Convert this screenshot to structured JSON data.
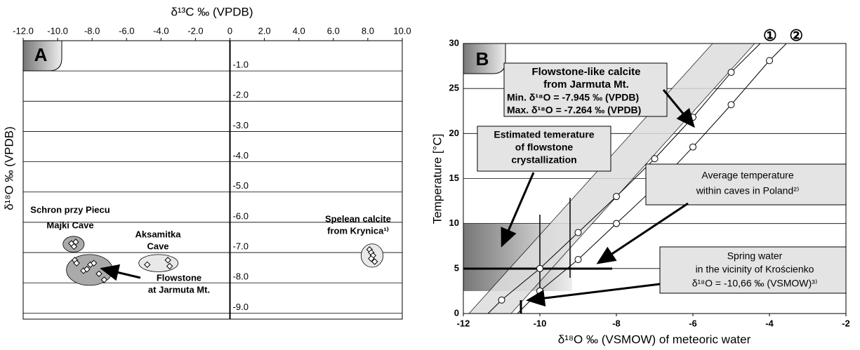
{
  "chart_data": [
    {
      "type": "scatter",
      "panel": "A",
      "x_label": "δ¹³C ‰ (VPDB)",
      "y_label": "δ¹⁸O ‰ (VPDB)",
      "xlim": [
        -12,
        10
      ],
      "ylim": [
        0,
        -9.2
      ],
      "xticks": [
        {
          "value": -12,
          "label": "-12.0"
        },
        {
          "value": -10,
          "label": "-10.0"
        },
        {
          "value": -8,
          "label": "-8.0"
        },
        {
          "value": -6,
          "label": "-6.0"
        },
        {
          "value": -4,
          "label": "-4.0"
        },
        {
          "value": -2,
          "label": "-2.0"
        },
        0,
        {
          "value": 2,
          "label": "2.0"
        },
        {
          "value": 4,
          "label": "4.0"
        },
        {
          "value": 6,
          "label": "6.0"
        },
        {
          "value": 8,
          "label": "8.0"
        },
        {
          "value": 10,
          "label": "10.0"
        }
      ],
      "yticks": [
        {
          "value": -1,
          "label": "-1.0"
        },
        {
          "value": -2,
          "label": "-2.0"
        },
        {
          "value": -3,
          "label": "-3.0"
        },
        {
          "value": -4,
          "label": "-4.0"
        },
        {
          "value": -5,
          "label": "-5.0"
        },
        {
          "value": -6,
          "label": "-6.0"
        },
        {
          "value": -7,
          "label": "-7.0"
        },
        {
          "value": -8,
          "label": "-8.0"
        },
        {
          "value": -9,
          "label": "-9.0"
        }
      ],
      "grid": true,
      "series": [
        {
          "color": "#aaaaaa",
          "x": [
            -9.2,
            -8.95,
            -9.05
          ],
          "values": [
            -6.7,
            -6.65,
            -6.8
          ]
        },
        {
          "color": "#aaaaaa",
          "x": [
            -9.0,
            -8.9,
            -8.5,
            -8.3,
            -8.1,
            -7.9,
            -7.6,
            -7.3
          ],
          "values": [
            -7.25,
            -7.35,
            -7.6,
            -7.55,
            -7.4,
            -7.35,
            -7.7,
            -7.9
          ]
        },
        {
          "color": "#e8e8e8",
          "x": [
            -4.8,
            -3.6,
            -3.5
          ],
          "values": [
            -7.4,
            -7.25,
            -7.45
          ]
        },
        {
          "color": "#e8e8e8",
          "x": [
            8.1,
            8.2,
            8.3,
            8.2,
            8.4
          ],
          "values": [
            -6.9,
            -7.0,
            -7.1,
            -7.2,
            -7.3
          ]
        }
      ],
      "annotations": [
        {
          "lines": [
            "Schron przy Piecu",
            "Majki Cave"
          ]
        },
        {
          "lines": [
            "Flowstone",
            "at Jarmuta Mt."
          ]
        },
        {
          "lines": [
            "Aksamitka",
            "Cave"
          ]
        },
        {
          "lines": [
            "Spelean calcite",
            "from Krynica¹⁾"
          ]
        }
      ]
    },
    {
      "type": "line",
      "panel": "B",
      "x_label": "δ¹⁸O ‰ (VSMOW) of meteoric water",
      "y_label": "Temperature [°C]",
      "xlim": [
        -12,
        -2
      ],
      "ylim": [
        0,
        30
      ],
      "xticks": [
        -12,
        -10,
        -8,
        -6,
        -4,
        -2
      ],
      "yticks": [
        0,
        5,
        10,
        15,
        20,
        25,
        30
      ],
      "grid": true,
      "series": [
        {
          "name": "①",
          "color": "#000000",
          "x": [
            -11,
            -10,
            -9,
            -8,
            -7,
            -6,
            -5
          ],
          "values": [
            1.5,
            5,
            9,
            13,
            17.2,
            21.8,
            26.8
          ]
        },
        {
          "name": "②",
          "color": "#000000",
          "x": [
            -10,
            -9,
            -8,
            -7,
            -6,
            -5,
            -4
          ],
          "values": [
            2.5,
            6,
            10,
            14,
            18.5,
            23.2,
            28.1
          ]
        }
      ],
      "annotations": [
        {
          "lines": [
            "Flowstone-like calcite",
            "from Jarmuta Mt.",
            "Min. δ¹⁸O = -7.945 ‰ (VPDB)",
            "Max. δ¹⁸O = -7.264 ‰ (VPDB)"
          ]
        },
        {
          "lines": [
            "Estimated temerature",
            "of flowstone",
            "crystallization"
          ]
        },
        {
          "lines": [
            "Average temperature",
            "within caves in Poland²⁾"
          ]
        },
        {
          "lines": [
            "Spring water",
            "in the vicinity of Krościenko",
            "δ¹⁸O = -10,66 ‰ (VSMOW)³⁾"
          ]
        }
      ]
    }
  ]
}
